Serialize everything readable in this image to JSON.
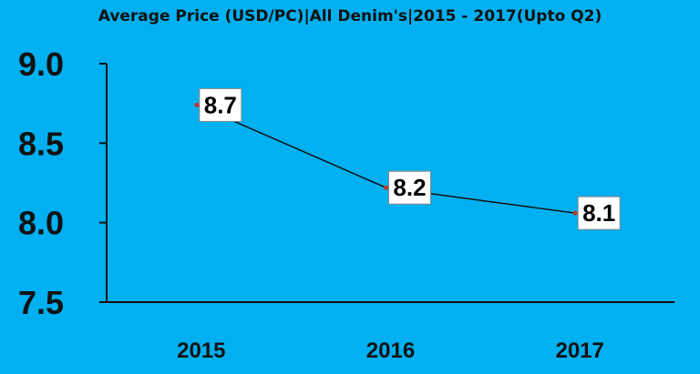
{
  "chart_data": {
    "type": "line",
    "title": "Average Price (USD/PC)|All Denim's|2015 - 2017(Upto Q2)",
    "xlabel": "",
    "ylabel": "",
    "categories": [
      "2015",
      "2016",
      "2017"
    ],
    "series": [
      {
        "values": [
          8.74,
          8.22,
          8.06
        ],
        "labels": [
          "8.7",
          "8.2",
          "8.1"
        ]
      }
    ],
    "ylim": [
      7.5,
      9.0
    ],
    "yticks": [
      "9.0",
      "8.5",
      "8.0",
      "7.5"
    ],
    "ytick_values": [
      9.0,
      8.5,
      8.0,
      7.5
    ],
    "grid": false,
    "legend": "none",
    "colors": {
      "background": "#00b0f0",
      "line": "#111111",
      "marker": "#c0392b",
      "label_bg": "#ffffff",
      "axis": "#111111"
    }
  }
}
